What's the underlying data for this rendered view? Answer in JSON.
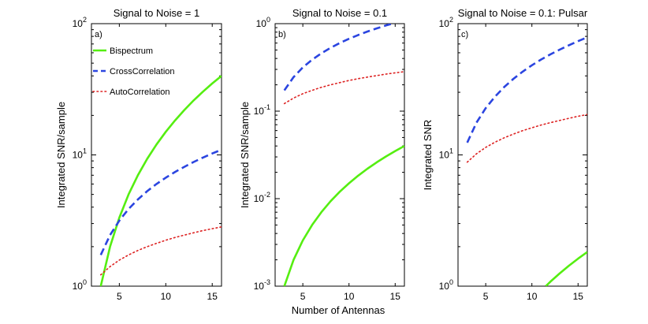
{
  "figure": {
    "shared_xlabel": "Number of Antennas"
  },
  "chart_data": [
    {
      "type": "line",
      "panel_label": "a)",
      "title": "Signal to Noise = 1",
      "xlabel": "",
      "ylabel": "Integrated SNR/sample",
      "yscale": "log",
      "xlim": [
        2,
        16
      ],
      "ylim": [
        1,
        100
      ],
      "xticks": [
        5,
        10,
        15
      ],
      "yticks": [
        {
          "base": "10",
          "exp": "0",
          "value": 1
        },
        {
          "base": "10",
          "exp": "1",
          "value": 10
        },
        {
          "base": "10",
          "exp": "2",
          "value": 100
        }
      ],
      "grid": false,
      "legend": {
        "position": "top-left",
        "entries": [
          "Bispectrum",
          "CrossCorrelation",
          "AutoCorrelation"
        ]
      },
      "series": [
        {
          "name": "Bispectrum",
          "color": "#55ee11",
          "style": "solid",
          "x": [
            3,
            4,
            5,
            6,
            7,
            8,
            9,
            10,
            11,
            12,
            13,
            14,
            15,
            16
          ],
          "y": [
            1.0,
            2.0,
            3.33,
            5.0,
            7.0,
            9.33,
            12.0,
            15.0,
            18.33,
            22.0,
            26.0,
            30.33,
            35.0,
            40.0
          ]
        },
        {
          "name": "CrossCorrelation",
          "color": "#2b45e0",
          "style": "dashed",
          "x": [
            3,
            4,
            5,
            6,
            7,
            8,
            9,
            10,
            11,
            12,
            13,
            14,
            15,
            16
          ],
          "y": [
            1.73,
            2.45,
            3.16,
            3.87,
            4.58,
            5.29,
            6.0,
            6.71,
            7.42,
            8.12,
            8.83,
            9.54,
            10.25,
            10.95
          ]
        },
        {
          "name": "AutoCorrelation",
          "color": "#dd2222",
          "style": "dotted",
          "x": [
            3,
            4,
            5,
            6,
            7,
            8,
            9,
            10,
            11,
            12,
            13,
            14,
            15,
            16
          ],
          "y": [
            1.22,
            1.41,
            1.58,
            1.73,
            1.87,
            2.0,
            2.12,
            2.24,
            2.35,
            2.45,
            2.55,
            2.65,
            2.74,
            2.83
          ]
        }
      ]
    },
    {
      "type": "line",
      "panel_label": "b)",
      "title": "Signal to Noise = 0.1",
      "xlabel": "Number of Antennas",
      "ylabel": "Integrated SNR/sample",
      "yscale": "log",
      "xlim": [
        2,
        16
      ],
      "ylim": [
        0.001,
        1
      ],
      "xticks": [
        5,
        10,
        15
      ],
      "yticks": [
        {
          "base": "10",
          "exp": "-3",
          "value": 0.001
        },
        {
          "base": "10",
          "exp": "-2",
          "value": 0.01
        },
        {
          "base": "10",
          "exp": "-1",
          "value": 0.1
        },
        {
          "base": "10",
          "exp": "0",
          "value": 1
        }
      ],
      "grid": false,
      "series": [
        {
          "name": "Bispectrum",
          "color": "#55ee11",
          "style": "solid",
          "x": [
            3,
            4,
            5,
            6,
            7,
            8,
            9,
            10,
            11,
            12,
            13,
            14,
            15,
            16
          ],
          "y": [
            0.001,
            0.002,
            0.00333,
            0.005,
            0.007,
            0.00933,
            0.012,
            0.015,
            0.01833,
            0.022,
            0.026,
            0.03033,
            0.035,
            0.04
          ]
        },
        {
          "name": "CrossCorrelation",
          "color": "#2b45e0",
          "style": "dashed",
          "x": [
            3,
            4,
            5,
            6,
            7,
            8,
            9,
            10,
            11,
            12,
            13,
            14,
            15,
            16
          ],
          "y": [
            0.173,
            0.245,
            0.316,
            0.387,
            0.458,
            0.529,
            0.6,
            0.671,
            0.742,
            0.812,
            0.883,
            0.954,
            1.025,
            1.095
          ]
        },
        {
          "name": "AutoCorrelation",
          "color": "#dd2222",
          "style": "dotted",
          "x": [
            3,
            4,
            5,
            6,
            7,
            8,
            9,
            10,
            11,
            12,
            13,
            14,
            15,
            16
          ],
          "y": [
            0.122,
            0.141,
            0.158,
            0.173,
            0.187,
            0.2,
            0.212,
            0.224,
            0.235,
            0.245,
            0.255,
            0.265,
            0.274,
            0.283
          ]
        }
      ]
    },
    {
      "type": "line",
      "panel_label": "c)",
      "title": "Signal to Noise = 0.1: Pulsar",
      "xlabel": "",
      "ylabel": "Integrated SNR",
      "yscale": "log",
      "xlim": [
        2,
        16
      ],
      "ylim": [
        1,
        100
      ],
      "xticks": [
        5,
        10,
        15
      ],
      "yticks": [
        {
          "base": "10",
          "exp": "0",
          "value": 1
        },
        {
          "base": "10",
          "exp": "1",
          "value": 10
        },
        {
          "base": "10",
          "exp": "2",
          "value": 100
        }
      ],
      "grid": false,
      "series": [
        {
          "name": "Bispectrum",
          "color": "#55ee11",
          "style": "solid",
          "x": [
            11.5,
            12,
            13,
            14,
            15,
            16
          ],
          "y": [
            1.0,
            1.08,
            1.25,
            1.43,
            1.62,
            1.82
          ]
        },
        {
          "name": "CrossCorrelation",
          "color": "#2b45e0",
          "style": "dashed",
          "x": [
            3,
            4,
            5,
            6,
            7,
            8,
            9,
            10,
            11,
            12,
            13,
            14,
            15,
            16
          ],
          "y": [
            12.4,
            17.6,
            22.7,
            27.8,
            32.9,
            38.0,
            43.1,
            48.2,
            53.3,
            58.3,
            63.4,
            68.5,
            73.6,
            78.7
          ]
        },
        {
          "name": "AutoCorrelation",
          "color": "#dd2222",
          "style": "dotted",
          "x": [
            3,
            4,
            5,
            6,
            7,
            8,
            9,
            10,
            11,
            12,
            13,
            14,
            15,
            16
          ],
          "y": [
            8.8,
            10.2,
            11.4,
            12.5,
            13.5,
            14.4,
            15.3,
            16.1,
            16.9,
            17.6,
            18.3,
            19.0,
            19.7,
            20.3
          ]
        }
      ]
    }
  ]
}
